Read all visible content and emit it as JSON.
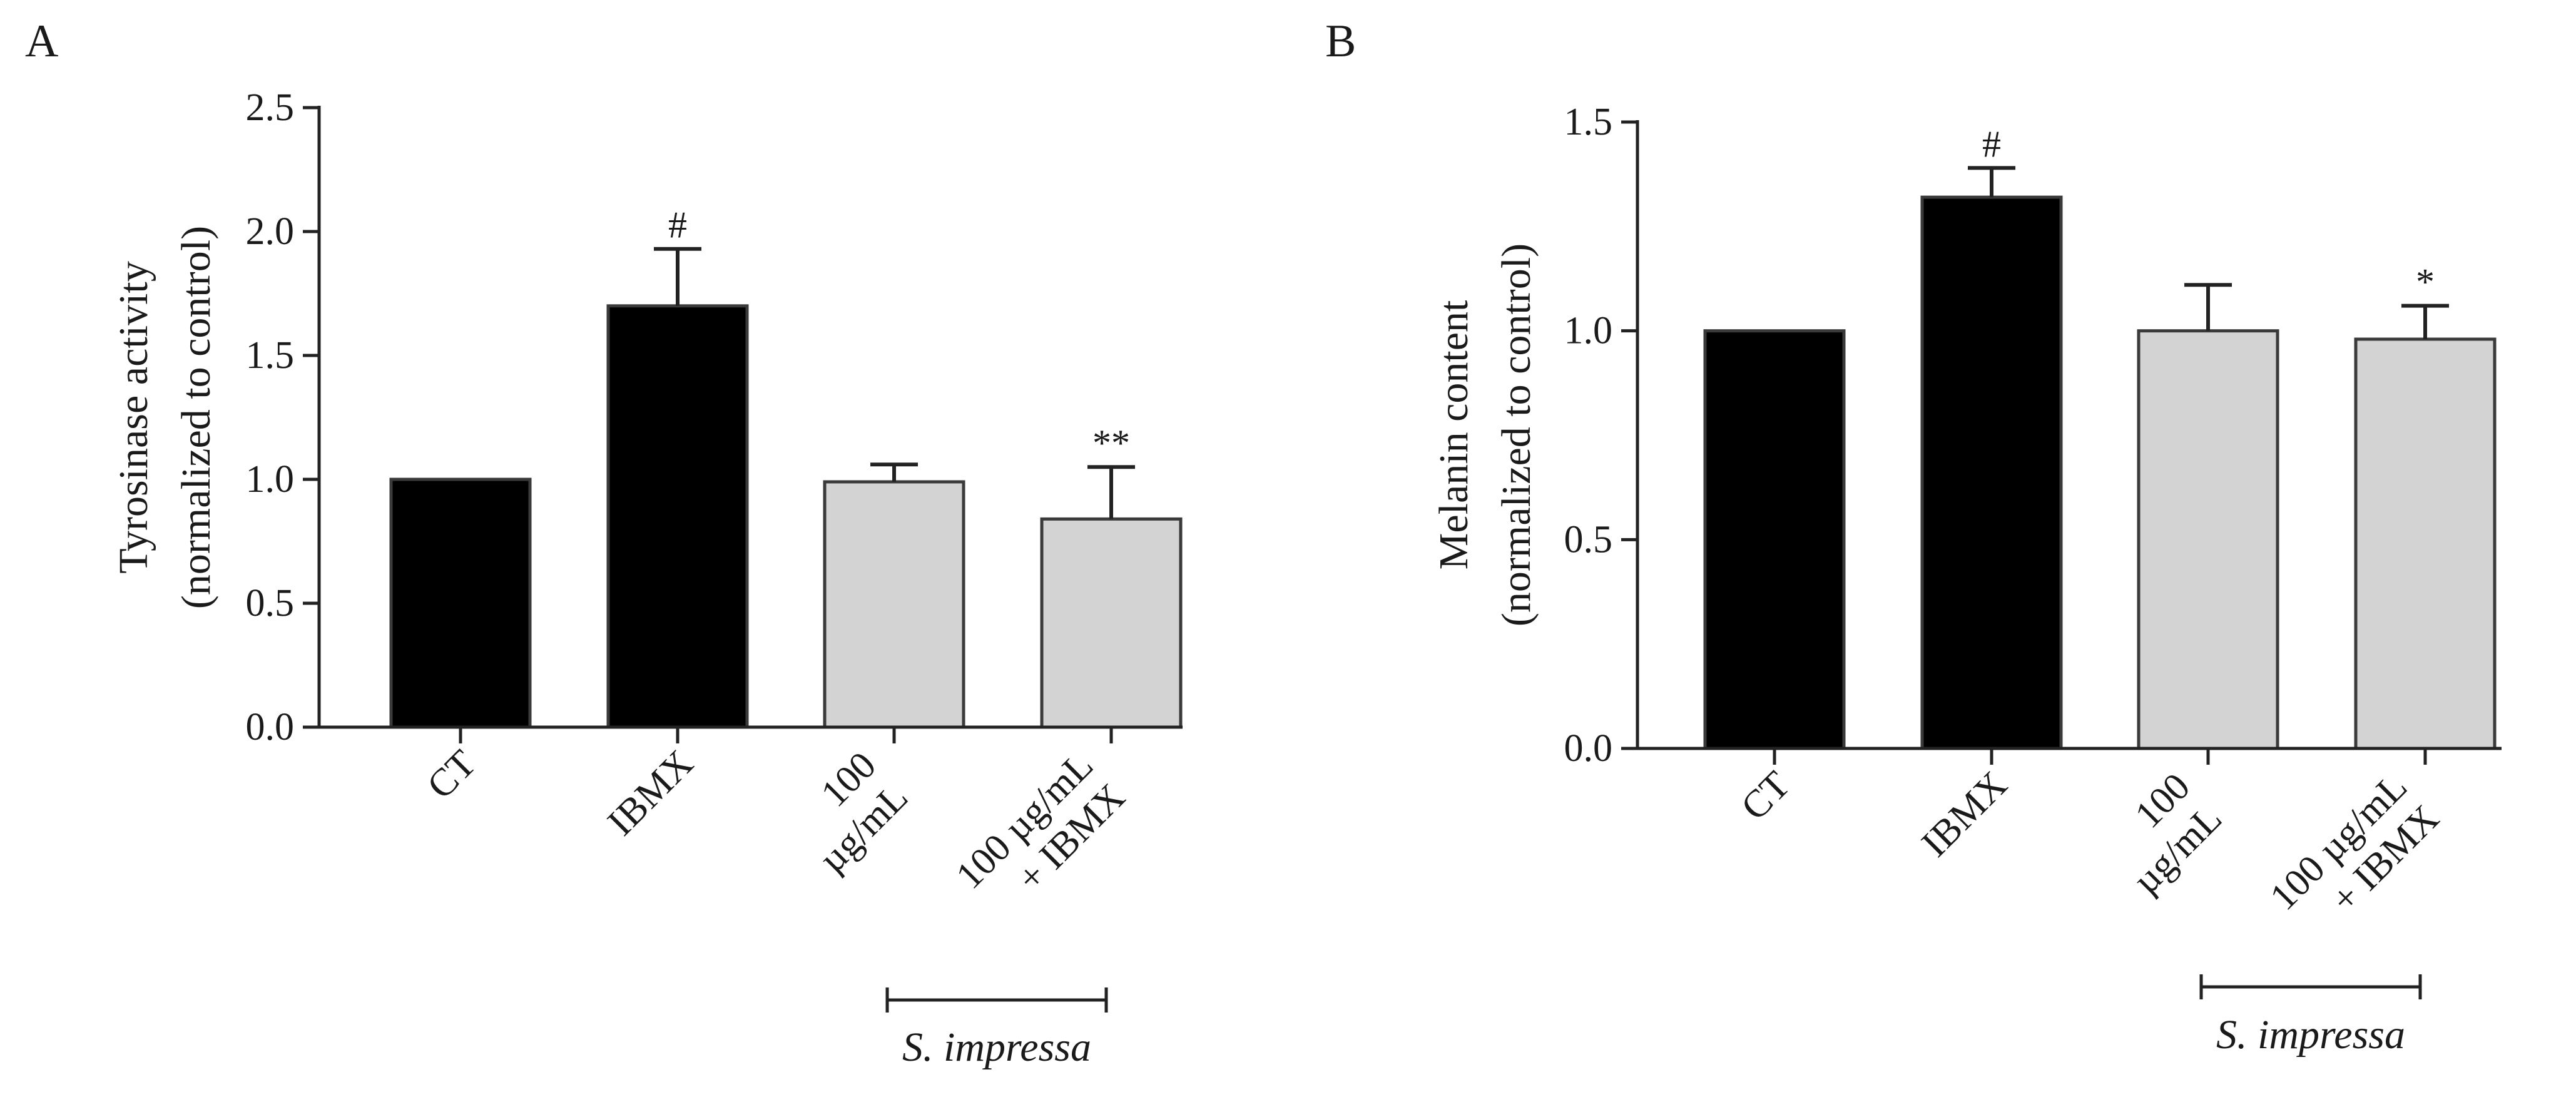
{
  "chart_data": [
    {
      "type": "bar",
      "panel_label": "A",
      "categories": [
        "CT",
        "IBMX",
        "100\nµg/mL",
        "100 µg/mL\n+ IBMX"
      ],
      "values": [
        1.0,
        1.7,
        0.99,
        0.84
      ],
      "errors": [
        0.0,
        0.23,
        0.07,
        0.21
      ],
      "significance": [
        "",
        "#",
        "",
        "**"
      ],
      "colors": [
        "#000000",
        "#000000",
        "#d3d3d3",
        "#d3d3d3"
      ],
      "ylabel": [
        "Tyrosinase activity",
        "(normalized to control)"
      ],
      "xlabel": "",
      "ylim": [
        0,
        2.5
      ],
      "yticks": [
        0.0,
        0.5,
        1.0,
        1.5,
        2.0,
        2.5
      ],
      "ytick_labels": [
        "0.0",
        "0.5",
        "1.0",
        "1.5",
        "2.0",
        "2.5"
      ],
      "group_bracket": {
        "label": "S. impressa",
        "from_category": 2,
        "to_category": 3
      }
    },
    {
      "type": "bar",
      "panel_label": "B",
      "categories": [
        "CT",
        "IBMX",
        "100\nµg/mL",
        "100 µg/mL\n+ IBMX"
      ],
      "values": [
        1.0,
        1.32,
        1.0,
        0.98
      ],
      "errors": [
        0.0,
        0.07,
        0.11,
        0.08
      ],
      "significance": [
        "",
        "#",
        "",
        "*"
      ],
      "colors": [
        "#000000",
        "#000000",
        "#d3d3d3",
        "#d3d3d3"
      ],
      "ylabel": [
        "Melanin content",
        "(normalized to control)"
      ],
      "xlabel": "",
      "ylim": [
        0,
        1.5
      ],
      "yticks": [
        0.0,
        0.5,
        1.0,
        1.5
      ],
      "ytick_labels": [
        "0.0",
        "0.5",
        "1.0",
        "1.5"
      ],
      "group_bracket": {
        "label": "S. impressa",
        "from_category": 2,
        "to_category": 3
      }
    }
  ]
}
